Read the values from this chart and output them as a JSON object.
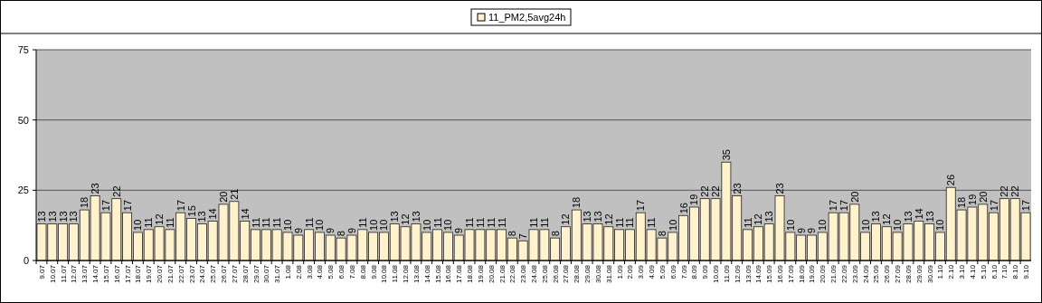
{
  "chart_data": {
    "type": "bar",
    "categories": [
      "9.07",
      "10.07",
      "11.07",
      "12.07",
      "13.07",
      "14.07",
      "15.07",
      "16.07",
      "17.07",
      "18.07",
      "19.07",
      "20.07",
      "21.07",
      "22.07",
      "23.07",
      "24.07",
      "25.07",
      "26.07",
      "27.07",
      "28.07",
      "29.07",
      "30.07",
      "31.07",
      "1.08",
      "2.08",
      "3.08",
      "4.08",
      "5.08",
      "6.08",
      "7.08",
      "8.08",
      "9.08",
      "10.08",
      "11.08",
      "12.08",
      "13.08",
      "14.08",
      "15.08",
      "16.08",
      "17.08",
      "18.08",
      "19.08",
      "20.08",
      "21.08",
      "22.08",
      "23.08",
      "24.08",
      "25.08",
      "26.08",
      "27.08",
      "28.08",
      "29.08",
      "30.08",
      "31.08",
      "1.09",
      "2.09",
      "3.09",
      "4.09",
      "5.09",
      "6.09",
      "7.09",
      "8.09",
      "9.09",
      "10.09",
      "11.09",
      "12.09",
      "13.09",
      "14.09",
      "15.09",
      "16.09",
      "17.09",
      "18.09",
      "19.09",
      "20.09",
      "21.09",
      "22.09",
      "23.09",
      "24.09",
      "25.09",
      "26.09",
      "27.09",
      "28.09",
      "29.09",
      "30.09",
      "1.10",
      "2.10",
      "3.10",
      "4.10",
      "5.10",
      "6.10",
      "7.10",
      "8.10",
      "9.10"
    ],
    "series": [
      {
        "name": "11_PM2,5avg24h",
        "color": "#fff2cc",
        "values": [
          13,
          13,
          13,
          13,
          18,
          23,
          17,
          22,
          17,
          10,
          11,
          12,
          11,
          17,
          15,
          13,
          14,
          20,
          21,
          14,
          11,
          11,
          11,
          10,
          9,
          11,
          10,
          9,
          8,
          9,
          11,
          10,
          10,
          13,
          12,
          13,
          10,
          11,
          10,
          9,
          11,
          11,
          11,
          11,
          8,
          7,
          11,
          11,
          8,
          12,
          18,
          13,
          13,
          12,
          11,
          11,
          17,
          11,
          8,
          10,
          16,
          19,
          22,
          22,
          35,
          23,
          11,
          12,
          13,
          23,
          10,
          9,
          9,
          10,
          17,
          17,
          20,
          10,
          13,
          12,
          10,
          13,
          14,
          13,
          10,
          26,
          18,
          19,
          20,
          17,
          22,
          22,
          17
        ]
      }
    ],
    "ylim": [
      0,
      75
    ],
    "yticks": [
      0,
      25,
      50,
      75
    ],
    "grid": "y",
    "legend": "top",
    "data_labels": true
  }
}
